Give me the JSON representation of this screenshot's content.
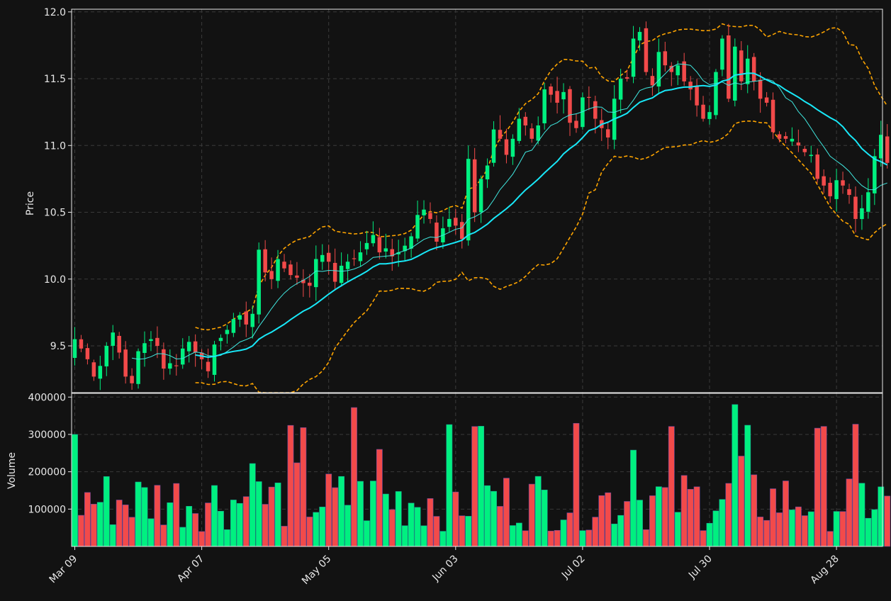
{
  "theme": {
    "background": "#121212",
    "axis_color": "#e8e8e8",
    "grid_color": "#3a3a3a",
    "up_color": "#00f080",
    "down_color": "#f24a4a",
    "ma_fast_color": "#40e8e0",
    "ma_slow_color": "#18e8f8",
    "band_color": "#ffa500"
  },
  "chart_data": {
    "type": "candlestick",
    "start_date": "2018-03-08",
    "business_days_only": true,
    "grid": true,
    "price_panel": {
      "ylabel": "Price",
      "ylim": [
        9.15,
        12.02
      ],
      "yticks": [
        "9.5",
        "10.0",
        "10.5",
        "11.0",
        "11.5",
        "12.0"
      ],
      "ma_fast_window": 10,
      "ma_slow_window": 20,
      "band_std": 2
    },
    "volume_panel": {
      "ylabel": "Volume",
      "ylim": [
        0,
        410000
      ],
      "yticks": [
        "100000",
        "200000",
        "300000",
        "400000"
      ]
    },
    "xticks": [
      {
        "label": "Mar 09",
        "index": 1
      },
      {
        "label": "Apr 07",
        "index": 21
      },
      {
        "label": "May 05",
        "index": 41
      },
      {
        "label": "Jun 03",
        "index": 61
      },
      {
        "label": "Jul 02",
        "index": 81
      },
      {
        "label": "Jul 30",
        "index": 101
      },
      {
        "label": "Aug 28",
        "index": 121
      }
    ],
    "close": [
      9.55,
      9.48,
      9.4,
      9.27,
      9.35,
      9.5,
      9.6,
      9.45,
      9.27,
      9.22,
      9.46,
      9.52,
      9.55,
      9.5,
      9.33,
      9.37,
      9.35,
      9.48,
      9.53,
      9.45,
      9.4,
      9.31,
      9.51,
      9.56,
      9.62,
      9.7,
      9.73,
      9.66,
      9.74,
      10.22,
      10.05,
      10.0,
      10.15,
      10.08,
      10.03,
      10.01,
      9.97,
      9.95,
      10.15,
      10.18,
      10.13,
      9.98,
      10.1,
      10.13,
      10.15,
      10.2,
      10.27,
      10.33,
      10.2,
      10.23,
      10.17,
      10.2,
      10.25,
      10.32,
      10.48,
      10.52,
      10.45,
      10.28,
      10.38,
      10.45,
      10.4,
      10.3,
      10.9,
      10.5,
      10.75,
      10.85,
      11.12,
      11.05,
      10.93,
      11.05,
      11.2,
      11.15,
      11.05,
      11.15,
      11.42,
      11.38,
      11.32,
      11.4,
      11.17,
      11.13,
      11.36,
      11.36,
      11.2,
      11.13,
      11.06,
      11.35,
      11.5,
      11.5,
      11.8,
      11.85,
      11.55,
      11.45,
      11.7,
      11.6,
      11.55,
      11.6,
      11.48,
      11.42,
      11.3,
      11.2,
      11.25,
      11.55,
      11.8,
      11.35,
      11.74,
      11.48,
      11.65,
      11.48,
      11.35,
      11.32,
      11.1,
      11.05,
      11.05,
      11.05,
      11.0,
      10.95,
      10.93,
      10.75,
      10.7,
      10.62,
      10.74,
      10.7,
      10.63,
      10.45,
      10.53,
      10.65,
      10.92,
      11.08,
      10.87
    ]
  }
}
